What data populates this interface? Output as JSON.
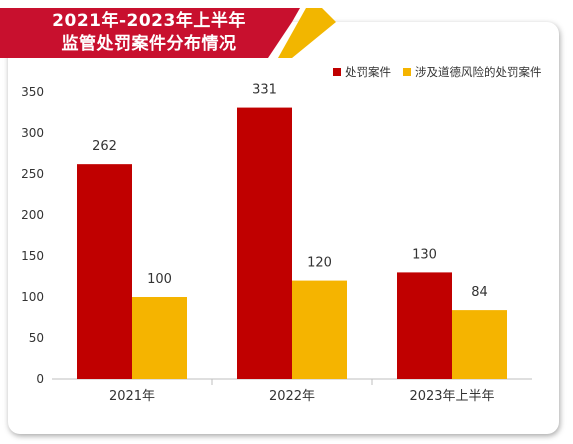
{
  "title_line1": "2021年-2023年上半年",
  "title_line2": "监管处罚案件分布情况",
  "colors": {
    "banner_red": "#c8102e",
    "banner_gold": "#f2b600",
    "series1": "#c00000",
    "series2": "#f5b400"
  },
  "chart_data": {
    "type": "bar",
    "title": "2021年-2023年上半年监管处罚案件分布情况",
    "categories": [
      "2021年",
      "2022年",
      "2023年上半年"
    ],
    "series": [
      {
        "name": "处罚案件",
        "values": [
          262,
          331,
          130
        ]
      },
      {
        "name": "涉及道德风险的处罚案件",
        "values": [
          100,
          120,
          84
        ]
      }
    ],
    "xlabel": "",
    "ylabel": "",
    "ylim": [
      0,
      350
    ],
    "yticks": [
      0,
      50,
      100,
      150,
      200,
      250,
      300,
      350
    ],
    "grid": false,
    "legend": "top-right"
  }
}
